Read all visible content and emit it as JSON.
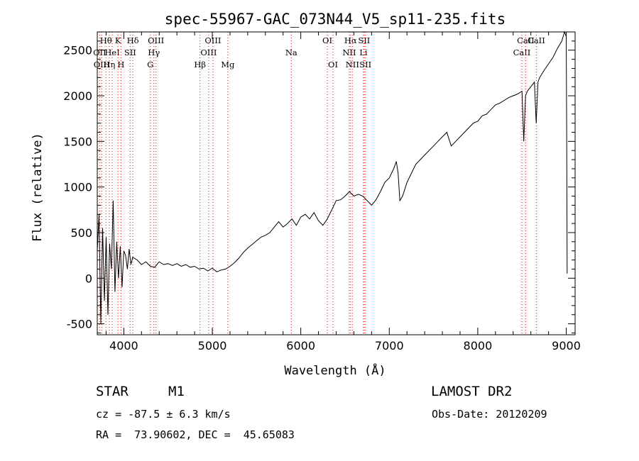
{
  "chart_data": {
    "type": "line",
    "title": "spec-55967-GAC_073N44_V5_sp11-235.fits",
    "xlabel": "Wavelength (Å)",
    "ylabel": "Flux (relative)",
    "xlim": [
      3700,
      9100
    ],
    "ylim": [
      -620,
      2700
    ],
    "x_ticks": [
      4000,
      5000,
      6000,
      7000,
      8000,
      9000
    ],
    "y_ticks": [
      -500,
      0,
      500,
      1000,
      1500,
      2000,
      2500
    ],
    "grid": false,
    "line_color": "#000000",
    "marker_color": "#ff0000",
    "series": [
      {
        "x": [
          3700,
          3720,
          3740,
          3760,
          3780,
          3800,
          3820,
          3840,
          3860,
          3880,
          3900,
          3920,
          3940,
          3960,
          3980,
          4000,
          4020,
          4040,
          4060,
          4080,
          4100,
          4150,
          4200,
          4250,
          4300,
          4350,
          4400,
          4450,
          4500,
          4550,
          4600,
          4650,
          4700,
          4750,
          4800,
          4850,
          4900,
          4950,
          5000,
          5050,
          5100,
          5150,
          5200,
          5250,
          5300,
          5350,
          5400,
          5450,
          5500,
          5550,
          5600,
          5650,
          5700,
          5750,
          5800,
          5850,
          5900,
          5950,
          6000,
          6050,
          6100,
          6150,
          6200,
          6250,
          6300,
          6350,
          6400,
          6450,
          6500,
          6550,
          6600,
          6650,
          6700,
          6750,
          6800,
          6850,
          6900,
          6950,
          7000,
          7050,
          7080,
          7100,
          7120,
          7150,
          7200,
          7250,
          7300,
          7350,
          7400,
          7450,
          7500,
          7550,
          7600,
          7650,
          7700,
          7750,
          7800,
          7850,
          7900,
          7950,
          8000,
          8050,
          8100,
          8150,
          8200,
          8250,
          8300,
          8350,
          8400,
          8450,
          8500,
          8520,
          8540,
          8560,
          8600,
          8640,
          8660,
          8680,
          8700,
          8750,
          8800,
          8850,
          8900,
          8950,
          8980,
          9000,
          9005,
          9010
        ],
        "y": [
          300,
          700,
          -500,
          550,
          -250,
          450,
          -400,
          380,
          100,
          850,
          -150,
          400,
          0,
          350,
          -100,
          300,
          250,
          100,
          320,
          150,
          230,
          200,
          150,
          180,
          130,
          120,
          180,
          150,
          160,
          140,
          160,
          130,
          150,
          120,
          130,
          100,
          110,
          80,
          110,
          70,
          90,
          100,
          130,
          170,
          220,
          280,
          330,
          370,
          410,
          450,
          470,
          500,
          560,
          620,
          560,
          600,
          650,
          580,
          670,
          700,
          650,
          720,
          630,
          580,
          650,
          750,
          850,
          860,
          900,
          950,
          900,
          920,
          900,
          850,
          800,
          860,
          950,
          1050,
          1100,
          1200,
          1280,
          1150,
          850,
          900,
          1050,
          1150,
          1250,
          1300,
          1350,
          1400,
          1450,
          1500,
          1550,
          1600,
          1450,
          1500,
          1550,
          1600,
          1650,
          1700,
          1720,
          1780,
          1800,
          1850,
          1900,
          1920,
          1950,
          1980,
          2000,
          2020,
          2050,
          1500,
          2000,
          2050,
          2100,
          2150,
          1700,
          2150,
          2200,
          2280,
          2350,
          2420,
          2520,
          2600,
          2700,
          2650,
          1500,
          50
        ]
      }
    ],
    "lines": [
      {
        "wl": 3727,
        "label": "OII",
        "tier": 1
      },
      {
        "wl": 3750,
        "label": "OIII",
        "tier": 2
      },
      {
        "wl": 3798,
        "label": "Hθ",
        "tier": 0
      },
      {
        "wl": 3835,
        "label": "Hη",
        "tier": 2
      },
      {
        "wl": 3869,
        "label": "HeI",
        "tier": 1
      },
      {
        "wl": 3934,
        "label": "K",
        "tier": 0
      },
      {
        "wl": 3968,
        "label": "H",
        "tier": 2
      },
      {
        "wl": 4072,
        "label": "SII",
        "tier": 1
      },
      {
        "wl": 4102,
        "label": "Hδ",
        "tier": 0
      },
      {
        "wl": 4300,
        "label": "G",
        "tier": 2
      },
      {
        "wl": 4340,
        "label": "Hγ",
        "tier": 1
      },
      {
        "wl": 4363,
        "label": "OIII",
        "tier": 0
      },
      {
        "wl": 4861,
        "label": "Hβ",
        "tier": 2
      },
      {
        "wl": 4959,
        "label": "OIII",
        "tier": 1
      },
      {
        "wl": 5007,
        "label": "OIII",
        "tier": 0
      },
      {
        "wl": 5175,
        "label": "Mg",
        "tier": 2
      },
      {
        "wl": 5893,
        "label": "Na",
        "tier": 1
      },
      {
        "wl": 6300,
        "label": "OI",
        "tier": 0
      },
      {
        "wl": 6364,
        "label": "OI",
        "tier": 2
      },
      {
        "wl": 6548,
        "label": "NII",
        "tier": 1
      },
      {
        "wl": 6563,
        "label": "Hα",
        "tier": 0
      },
      {
        "wl": 6583,
        "label": "NII",
        "tier": 2
      },
      {
        "wl": 6708,
        "label": "Li",
        "tier": 1
      },
      {
        "wl": 6716,
        "label": "SII",
        "tier": 0
      },
      {
        "wl": 6731,
        "label": "SII",
        "tier": 2
      },
      {
        "wl": 8498,
        "label": "CaII",
        "tier": 1
      },
      {
        "wl": 8542,
        "label": "CaII",
        "tier": 0
      },
      {
        "wl": 8662,
        "label": "CaII",
        "tier": 0
      }
    ]
  },
  "info": {
    "class_label": "STAR",
    "subclass_label": "M1",
    "survey": "LAMOST DR2",
    "cz": "cz = -87.5 ± 6.3 km/s",
    "obs_date": "Obs-Date: 20120209",
    "coords": "RA =  73.90602, DEC =  45.65083"
  }
}
